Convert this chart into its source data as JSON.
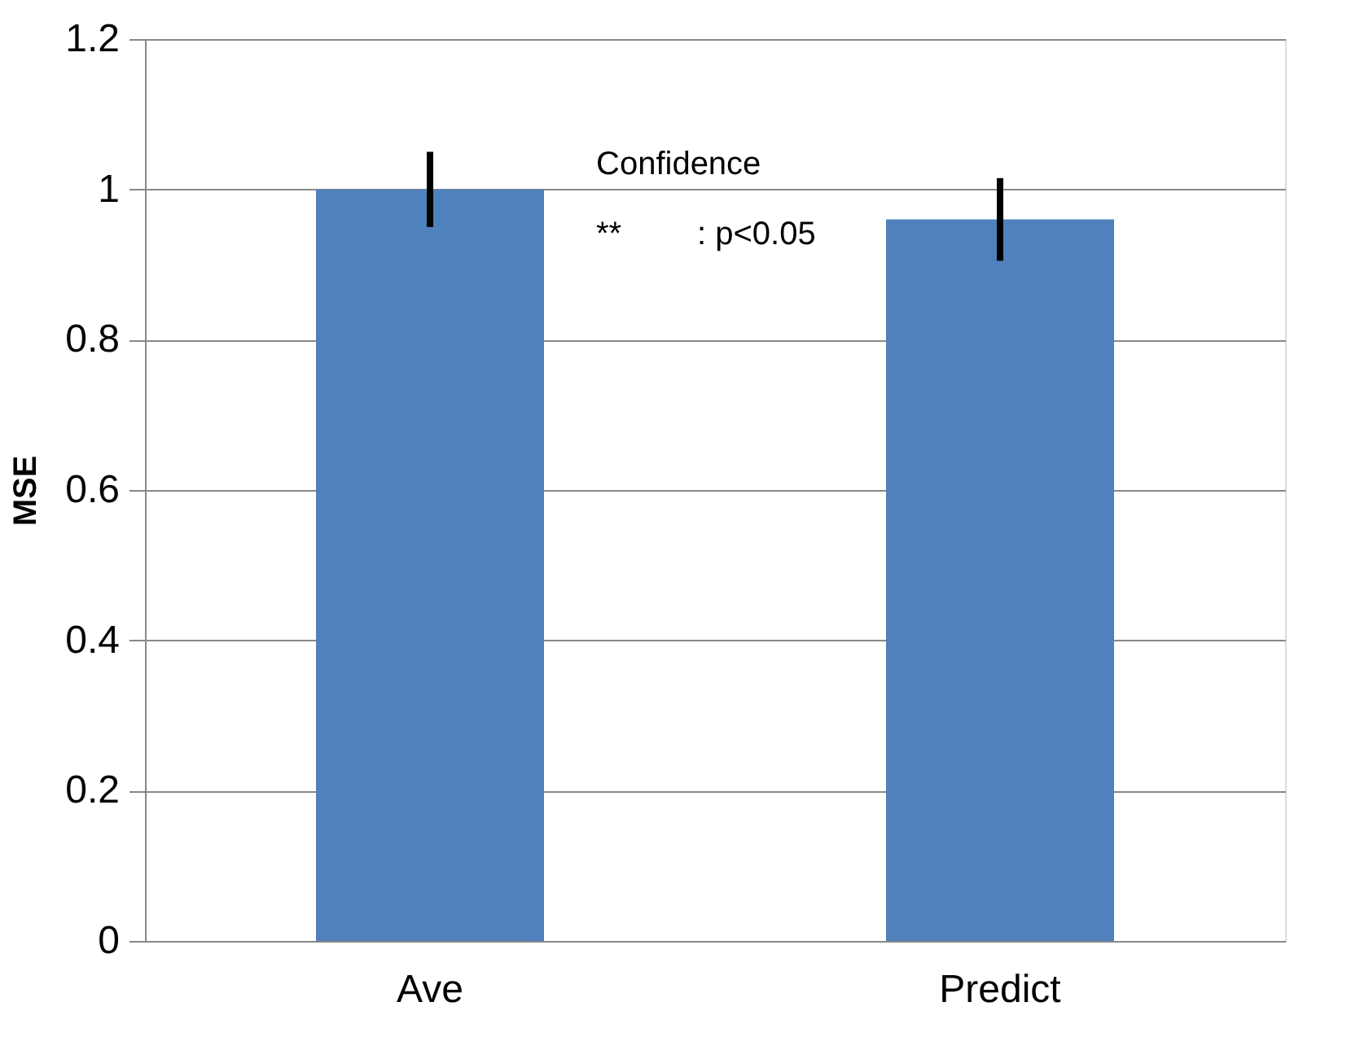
{
  "chart_data": {
    "type": "bar",
    "ylabel": "MSE",
    "categories": [
      "Ave",
      "Predict"
    ],
    "values": [
      1.0,
      0.96
    ],
    "errors": [
      0.05,
      0.055
    ],
    "color": "#4f81bd",
    "ylim": [
      0,
      1.2
    ],
    "yticks": [
      0,
      0.2,
      0.4,
      0.6,
      0.8,
      1,
      1.2
    ],
    "grid": "y",
    "annotations": [
      "Confidence",
      "**",
      ": p<0.05"
    ]
  }
}
